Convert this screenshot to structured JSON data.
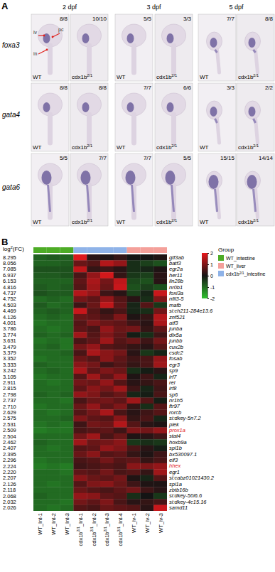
{
  "panel_labels": [
    "A",
    "B"
  ],
  "panel_a": {
    "stages": [
      "2 dpf",
      "3 dpf",
      "5 dpf"
    ],
    "genes": [
      "foxa3",
      "gata4",
      "gata6"
    ],
    "genotypes": [
      [
        "WT"
      ],
      [
        "cdx1b",
        "2/1"
      ],
      [
        "WT"
      ],
      [
        "cdx1b",
        "2/1"
      ],
      [
        "WT"
      ],
      [
        "cdx1b",
        "2/1"
      ]
    ],
    "counts": [
      [
        "8/8",
        "10/10",
        "5/5",
        "3/3",
        "7/7",
        "8/8"
      ],
      [
        "8/8",
        "8/8",
        "7/7",
        "6/6",
        "3/3",
        "2/2"
      ],
      [
        "5/5",
        "7/7",
        "7/7",
        "5/5",
        "15/15",
        "14/14"
      ]
    ],
    "annotations": [
      "lv",
      "pc",
      "in"
    ]
  },
  "chart_data": {
    "type": "heatmap",
    "fold_change_title": [
      "log",
      "2",
      "(FC)"
    ],
    "fold_changes": [
      "8.295",
      "8.056",
      "7.085",
      "6.937",
      "6.153",
      "4.816",
      "4.737",
      "4.752",
      "4.503",
      "4.469",
      "4.126",
      "4.001",
      "3.786",
      "3.774",
      "3.631",
      "3.479",
      "3.379",
      "3.352",
      "3.333",
      "3.242",
      "3.105",
      "2.911",
      "2.815",
      "2.798",
      "2.737",
      "2.710",
      "2.629",
      "2.575",
      "2.531",
      "2.509",
      "2.504",
      "2.462",
      "2.407",
      "2.395",
      "2.296",
      "2.224",
      "2.220",
      "2.207",
      "2.126",
      "2.118",
      "2.068",
      "2.032",
      "2.026"
    ],
    "y": [
      "gtf3ab",
      "batf3",
      "egr2a",
      "her11",
      "lin28b",
      "nr0b1",
      "foxi3a",
      "nfil3-5",
      "mafb",
      "si:ch211-284e13.6",
      "znf521",
      "atf3",
      "junba",
      "dlx5a",
      "junbb",
      "cux2b",
      "csdc2",
      "fosab",
      "egr3",
      "sp9",
      "irf7",
      "rel",
      "irf8",
      "sp6",
      "nr1h5",
      "ftr97",
      "rorcb",
      "si:dkey-5n7.2",
      "plek",
      "prox1a",
      "stat4",
      "hoxb9a",
      "spi1b",
      "bx530097.1",
      "elf3",
      "hhex",
      "egr1",
      "si:cabz01021430.2",
      "spi1a",
      "zbtb16b",
      "si:dkey-50i6.6",
      "si:dkey-4c15.16",
      "samd11"
    ],
    "highlighted": [
      "prox1a",
      "hhex"
    ],
    "x": [
      [
        "WT_Int-1"
      ],
      [
        "WT_Int-2"
      ],
      [
        "WT_Int-3"
      ],
      [
        "cdx1b",
        "2/1",
        "_Int-1"
      ],
      [
        "cdx1b",
        "2/1",
        "_Int-2"
      ],
      [
        "cdx1b",
        "2/1",
        "_Int-3"
      ],
      [
        "cdx1b",
        "2/1",
        "_Int-4"
      ],
      [
        "WT_lv-1"
      ],
      [
        "WT_lv-2"
      ],
      [
        "WT_lv-3"
      ]
    ],
    "column_groups": [
      0,
      0,
      0,
      2,
      2,
      2,
      2,
      1,
      1,
      1
    ],
    "legend_title": "Group",
    "groups": [
      {
        "name": [
          "WT_intestine"
        ],
        "color": "#4dac26"
      },
      {
        "name": [
          "WT_liver"
        ],
        "color": "#f4a09a"
      },
      {
        "name": [
          "cdx1b",
          "2/1",
          "_intestine"
        ],
        "color": "#8fb3e8"
      }
    ],
    "colorbar": {
      "range": [
        -2,
        2
      ],
      "ticks": [
        2,
        1,
        0,
        -1,
        -2
      ]
    },
    "values": [
      [
        -0.9,
        -0.8,
        -0.9,
        1.9,
        0.2,
        0.1,
        0.3,
        0.0,
        0.0,
        0.1
      ],
      [
        -0.9,
        -0.9,
        -0.8,
        0.8,
        0.6,
        1.5,
        1.2,
        -0.3,
        -0.5,
        -0.7
      ],
      [
        -0.7,
        -0.7,
        -0.7,
        1.6,
        0.3,
        0.4,
        0.2,
        -0.3,
        -0.2,
        0.1
      ],
      [
        -0.8,
        -0.8,
        -0.7,
        0.5,
        1.2,
        1.8,
        0.3,
        -0.4,
        -0.5,
        0.2
      ],
      [
        -0.9,
        -0.9,
        -0.9,
        0.7,
        1.4,
        0.9,
        1.6,
        -0.6,
        -0.7,
        0.2
      ],
      [
        -0.8,
        -0.9,
        -0.8,
        0.6,
        1.3,
        0.8,
        1.7,
        -0.7,
        -0.5,
        -0.7
      ],
      [
        -0.7,
        -0.8,
        -0.8,
        1.5,
        1.2,
        0.4,
        0.2,
        -0.5,
        -0.2,
        1.7
      ],
      [
        -1.0,
        -0.9,
        -1.0,
        0.9,
        0.7,
        1.2,
        0.6,
        0.2,
        -0.3,
        1.0
      ],
      [
        -0.8,
        -1.0,
        -0.9,
        0.4,
        0.8,
        1.6,
        0.7,
        -0.2,
        0.6,
        -0.4
      ],
      [
        -0.9,
        -0.8,
        -0.9,
        1.7,
        0.6,
        0.3,
        0.5,
        -0.2,
        -0.3,
        0.9
      ],
      [
        -1.0,
        -0.9,
        -1.0,
        0.8,
        0.7,
        0.5,
        1.0,
        0.1,
        0.3,
        1.5
      ],
      [
        -1.1,
        -1.0,
        -1.0,
        0.6,
        1.0,
        0.8,
        0.7,
        0.4,
        0.2,
        1.4
      ],
      [
        -1.0,
        -1.1,
        -1.0,
        0.7,
        0.5,
        1.2,
        0.8,
        0.9,
        0.3,
        0.7
      ],
      [
        -0.9,
        -1.0,
        -0.9,
        1.3,
        0.6,
        1.0,
        0.7,
        -0.1,
        -0.3,
        0.4
      ],
      [
        -1.1,
        -1.0,
        -1.1,
        0.5,
        0.7,
        1.3,
        0.6,
        0.8,
        0.4,
        0.9
      ],
      [
        -1.0,
        -0.9,
        -1.1,
        0.9,
        1.2,
        0.6,
        0.5,
        0.3,
        0.2,
        0.6
      ],
      [
        -1.0,
        -1.0,
        -0.9,
        0.5,
        1.4,
        1.1,
        0.9,
        0.2,
        -0.4,
        -0.2
      ],
      [
        -1.1,
        -1.0,
        -1.0,
        0.8,
        0.6,
        1.1,
        0.7,
        0.4,
        0.5,
        1.2
      ],
      [
        -0.9,
        -1.0,
        -1.0,
        1.1,
        0.9,
        0.4,
        0.6,
        0.3,
        0.5,
        1.3
      ],
      [
        -1.0,
        -0.9,
        -1.0,
        1.4,
        0.7,
        1.0,
        0.8,
        -0.3,
        -0.1,
        0.2
      ],
      [
        -1.1,
        -1.0,
        -1.0,
        0.6,
        1.3,
        0.7,
        1.2,
        0.1,
        0.4,
        -0.2
      ],
      [
        -1.0,
        -1.1,
        -1.0,
        0.9,
        0.8,
        1.2,
        0.6,
        0.2,
        0.3,
        0.5
      ],
      [
        -1.0,
        -1.0,
        -1.0,
        0.7,
        1.1,
        0.9,
        1.3,
        0.4,
        -0.2,
        0.4
      ],
      [
        -0.9,
        -1.0,
        -0.9,
        1.2,
        1.0,
        0.6,
        0.8,
        -0.2,
        -0.1,
        0.5
      ],
      [
        -1.0,
        -1.0,
        -1.1,
        0.5,
        0.8,
        0.9,
        0.7,
        1.3,
        0.6,
        -0.1
      ],
      [
        -1.1,
        -1.0,
        -1.0,
        0.8,
        1.2,
        0.7,
        1.0,
        0.3,
        -0.3,
        0.6
      ],
      [
        -1.0,
        -1.1,
        -1.0,
        0.6,
        0.9,
        1.4,
        0.5,
        0.2,
        0.4,
        0.6
      ],
      [
        -1.0,
        -1.0,
        -0.9,
        1.0,
        0.7,
        0.6,
        1.1,
        0.3,
        0.5,
        -0.2
      ],
      [
        -1.1,
        -1.0,
        -1.1,
        0.4,
        0.9,
        0.8,
        1.5,
        0.6,
        0.2,
        0.1
      ],
      [
        -1.2,
        -1.1,
        -1.1,
        0.5,
        0.6,
        0.7,
        0.4,
        1.0,
        0.9,
        1.2
      ],
      [
        -1.0,
        -1.0,
        -1.0,
        0.9,
        1.3,
        0.5,
        0.8,
        0.1,
        0.2,
        0.4
      ],
      [
        -0.9,
        -1.0,
        -1.0,
        1.3,
        0.8,
        0.9,
        1.1,
        -0.4,
        -0.3,
        -0.4
      ],
      [
        -1.0,
        -1.1,
        -1.0,
        0.6,
        0.7,
        1.2,
        1.0,
        0.5,
        0.2,
        -0.1
      ],
      [
        -1.0,
        -1.0,
        -1.0,
        0.8,
        1.1,
        0.6,
        0.7,
        0.3,
        0.1,
        0.4
      ],
      [
        -1.1,
        -1.0,
        -1.0,
        0.5,
        0.6,
        0.9,
        0.6,
        0.7,
        0.3,
        0.5
      ],
      [
        -1.2,
        -1.1,
        -1.2,
        0.4,
        0.5,
        0.6,
        0.5,
        1.1,
        1.0,
        1.2
      ],
      [
        -1.0,
        -1.0,
        -1.1,
        0.7,
        0.6,
        0.9,
        0.5,
        0.6,
        0.3,
        1.3
      ],
      [
        -1.0,
        -1.0,
        -1.0,
        1.1,
        0.8,
        0.7,
        0.9,
        0.1,
        -0.2,
        0.6
      ],
      [
        -1.0,
        -1.1,
        -1.0,
        0.6,
        1.0,
        1.1,
        0.8,
        0.4,
        0.1,
        0.1
      ],
      [
        -1.0,
        -1.0,
        -1.0,
        0.8,
        0.6,
        0.5,
        0.7,
        0.9,
        0.4,
        0.2
      ],
      [
        -0.9,
        -1.0,
        -1.0,
        1.2,
        1.1,
        0.7,
        0.6,
        -0.3,
        0.0,
        -0.4
      ],
      [
        -1.0,
        -1.0,
        -1.1,
        0.9,
        0.7,
        1.0,
        0.5,
        0.2,
        0.3,
        0.5
      ],
      [
        -1.0,
        -1.1,
        -1.0,
        0.6,
        0.5,
        0.8,
        0.7,
        0.6,
        0.2,
        1.7
      ]
    ]
  }
}
